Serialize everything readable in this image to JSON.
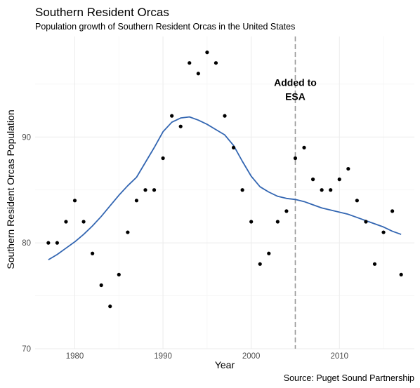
{
  "chart_data": {
    "type": "scatter",
    "title": "Southern Resident Orcas",
    "subtitle": "Population growth of Southern Resident Orcas in the United States",
    "xlabel": "Year",
    "ylabel": "Southern Resident Orcas Population",
    "caption": "Source: Puget Sound Partnership",
    "xlim": [
      1975.5,
      2018.5
    ],
    "ylim": [
      70,
      99.5
    ],
    "x_ticks": [
      1980,
      1990,
      2000,
      2010
    ],
    "x_tick_labels": [
      "1980",
      "1990",
      "2000",
      "2010"
    ],
    "y_ticks": [
      70,
      80,
      90
    ],
    "y_tick_labels": [
      "70",
      "80",
      "90"
    ],
    "grid": true,
    "points": {
      "x": [
        1977,
        1978,
        1979,
        1980,
        1981,
        1982,
        1983,
        1984,
        1985,
        1986,
        1987,
        1988,
        1989,
        1990,
        1991,
        1992,
        1993,
        1994,
        1995,
        1996,
        1997,
        1998,
        1999,
        2000,
        2001,
        2002,
        2003,
        2004,
        2005,
        2006,
        2007,
        2008,
        2009,
        2010,
        2011,
        2012,
        2013,
        2014,
        2015,
        2016,
        2017
      ],
      "y": [
        80,
        80,
        82,
        84,
        82,
        79,
        76,
        74,
        77,
        81,
        84,
        85,
        85,
        88,
        92,
        91,
        97,
        96,
        98,
        97,
        92,
        89,
        85,
        82,
        78,
        79,
        82,
        83,
        88,
        89,
        86,
        85,
        85,
        86,
        87,
        84,
        82,
        78,
        81,
        83,
        77
      ],
      "color": "#000000"
    },
    "trend": {
      "x": [
        1977,
        1978,
        1979,
        1980,
        1981,
        1982,
        1983,
        1984,
        1985,
        1986,
        1987,
        1988,
        1989,
        1990,
        1991,
        1992,
        1993,
        1994,
        1995,
        1996,
        1997,
        1998,
        1999,
        2000,
        2001,
        2002,
        2003,
        2004,
        2005,
        2006,
        2007,
        2008,
        2009,
        2010,
        2011,
        2012,
        2013,
        2014,
        2015,
        2016,
        2017
      ],
      "y": [
        78.4,
        78.9,
        79.5,
        80.1,
        80.8,
        81.6,
        82.5,
        83.5,
        84.5,
        85.4,
        86.2,
        87.6,
        89.0,
        90.5,
        91.4,
        91.8,
        91.9,
        91.6,
        91.2,
        90.7,
        90.2,
        89.2,
        87.7,
        86.3,
        85.3,
        84.8,
        84.4,
        84.2,
        84.1,
        83.9,
        83.6,
        83.3,
        83.1,
        82.9,
        82.7,
        82.4,
        82.1,
        81.8,
        81.5,
        81.1,
        80.8
      ],
      "color": "#3366b2",
      "method": "loess"
    },
    "vline": {
      "x": 2005,
      "color": "#999999",
      "style": "dashed"
    },
    "annotation": {
      "text_line1": "Added to",
      "text_line2": "ESA",
      "x": 2005,
      "y": 94.5
    }
  }
}
